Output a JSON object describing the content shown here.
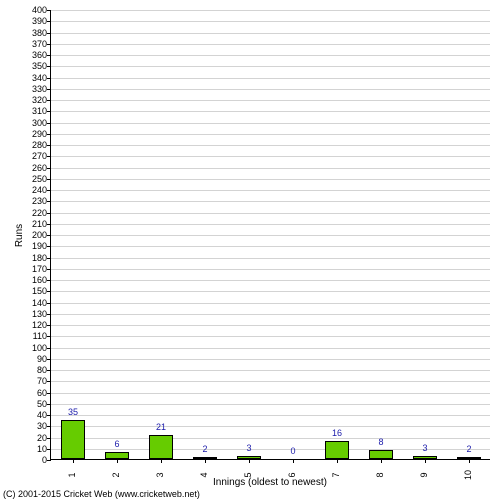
{
  "chart": {
    "type": "bar",
    "ylabel": "Runs",
    "xlabel": "Innings (oldest to newest)",
    "ylim": [
      0,
      400
    ],
    "ytick_step": 10,
    "categories": [
      "1",
      "2",
      "3",
      "4",
      "5",
      "6",
      "7",
      "8",
      "9",
      "10"
    ],
    "values": [
      35,
      6,
      21,
      2,
      3,
      0,
      16,
      8,
      3,
      2
    ],
    "bar_color": "#66cc00",
    "bar_border_color": "#000000",
    "bar_label_color": "#1a1aaa",
    "grid_color": "#d3d3d3",
    "background_color": "#ffffff",
    "bar_width_ratio": 0.55,
    "label_fontsize": 9
  },
  "copyright": "(C) 2001-2015 Cricket Web (www.cricketweb.net)"
}
